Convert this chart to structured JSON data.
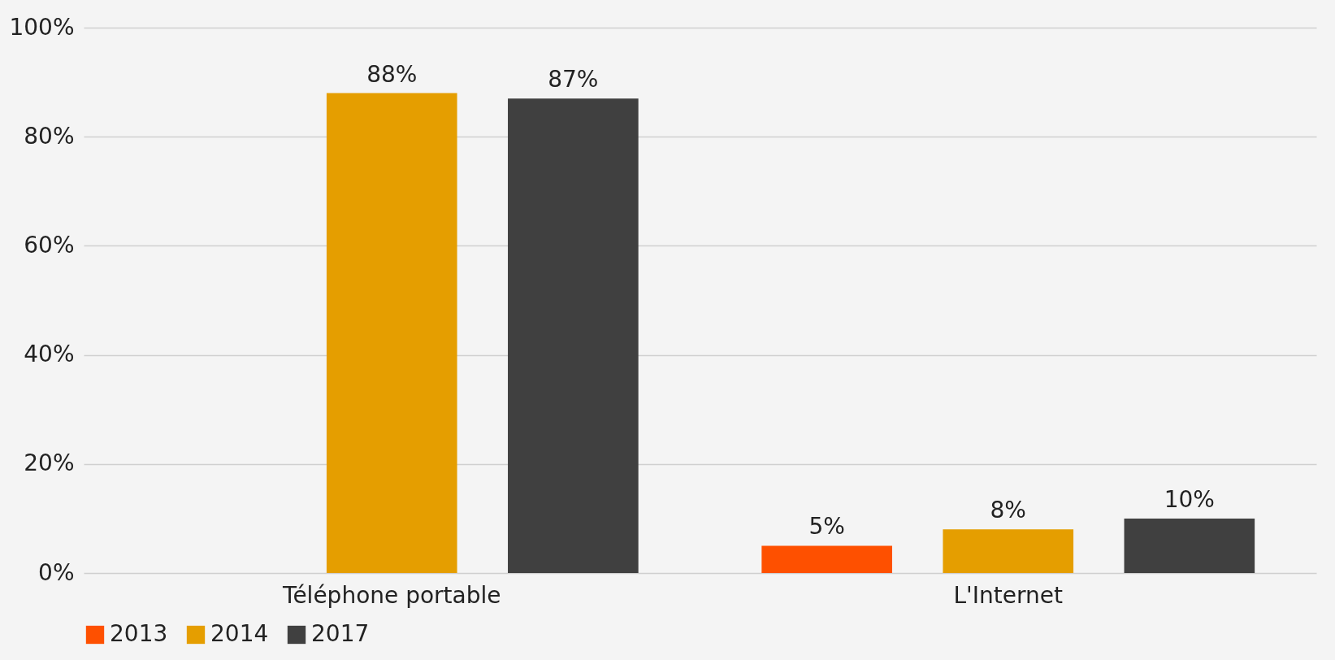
{
  "chart_data": {
    "type": "bar",
    "categories": [
      "Téléphone portable",
      "L'Internet"
    ],
    "series": [
      {
        "name": "2013",
        "color": "#fe5000",
        "values": [
          null,
          5
        ],
        "value_labels": [
          null,
          "5%"
        ]
      },
      {
        "name": "2014",
        "color": "#e59e00",
        "values": [
          88,
          8
        ],
        "value_labels": [
          "88%",
          "8%"
        ]
      },
      {
        "name": "2017",
        "color": "#404040",
        "values": [
          87,
          10
        ],
        "value_labels": [
          "87%",
          "10%"
        ]
      }
    ],
    "ylim": [
      0,
      100
    ],
    "yticks": [
      {
        "value": 0,
        "label": "0%"
      },
      {
        "value": 20,
        "label": "20%"
      },
      {
        "value": 40,
        "label": "40%"
      },
      {
        "value": 60,
        "label": "60%"
      },
      {
        "value": 80,
        "label": "80%"
      },
      {
        "value": 100,
        "label": "100%"
      }
    ],
    "grid": "y",
    "legend": "bottom"
  }
}
